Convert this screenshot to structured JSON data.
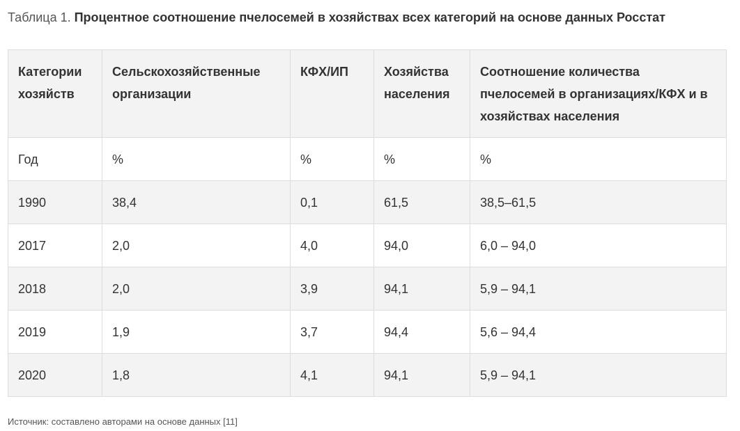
{
  "caption": {
    "prefix": "Таблица 1.",
    "title": "Процентное соотношение пчелосемей в хозяйствах всех категорий на основе данных Росстат"
  },
  "table": {
    "headers": [
      "Категории хозяйств",
      "Сельскохозяйственные организации",
      "КФХ/ИП",
      "Хозяйства населения",
      "Соотношение количества пчелосемей в организациях/КФХ и в хозяйствах населения"
    ],
    "rows": [
      [
        "Год",
        "%",
        "%",
        "%",
        "%"
      ],
      [
        "1990",
        "38,4",
        "0,1",
        "61,5",
        "38,5–61,5"
      ],
      [
        "2017",
        "2,0",
        "4,0",
        "94,0",
        "6,0 – 94,0"
      ],
      [
        "2018",
        "2,0",
        "3,9",
        "94,1",
        "5,9 – 94,1"
      ],
      [
        "2019",
        "1,9",
        "3,7",
        "94,4",
        "5,6 – 94,4"
      ],
      [
        "2020",
        "1,8",
        "4,1",
        "94,1",
        "5,9 – 94,1"
      ]
    ]
  },
  "source": "Источник: составлено авторами на основе данных [11]"
}
